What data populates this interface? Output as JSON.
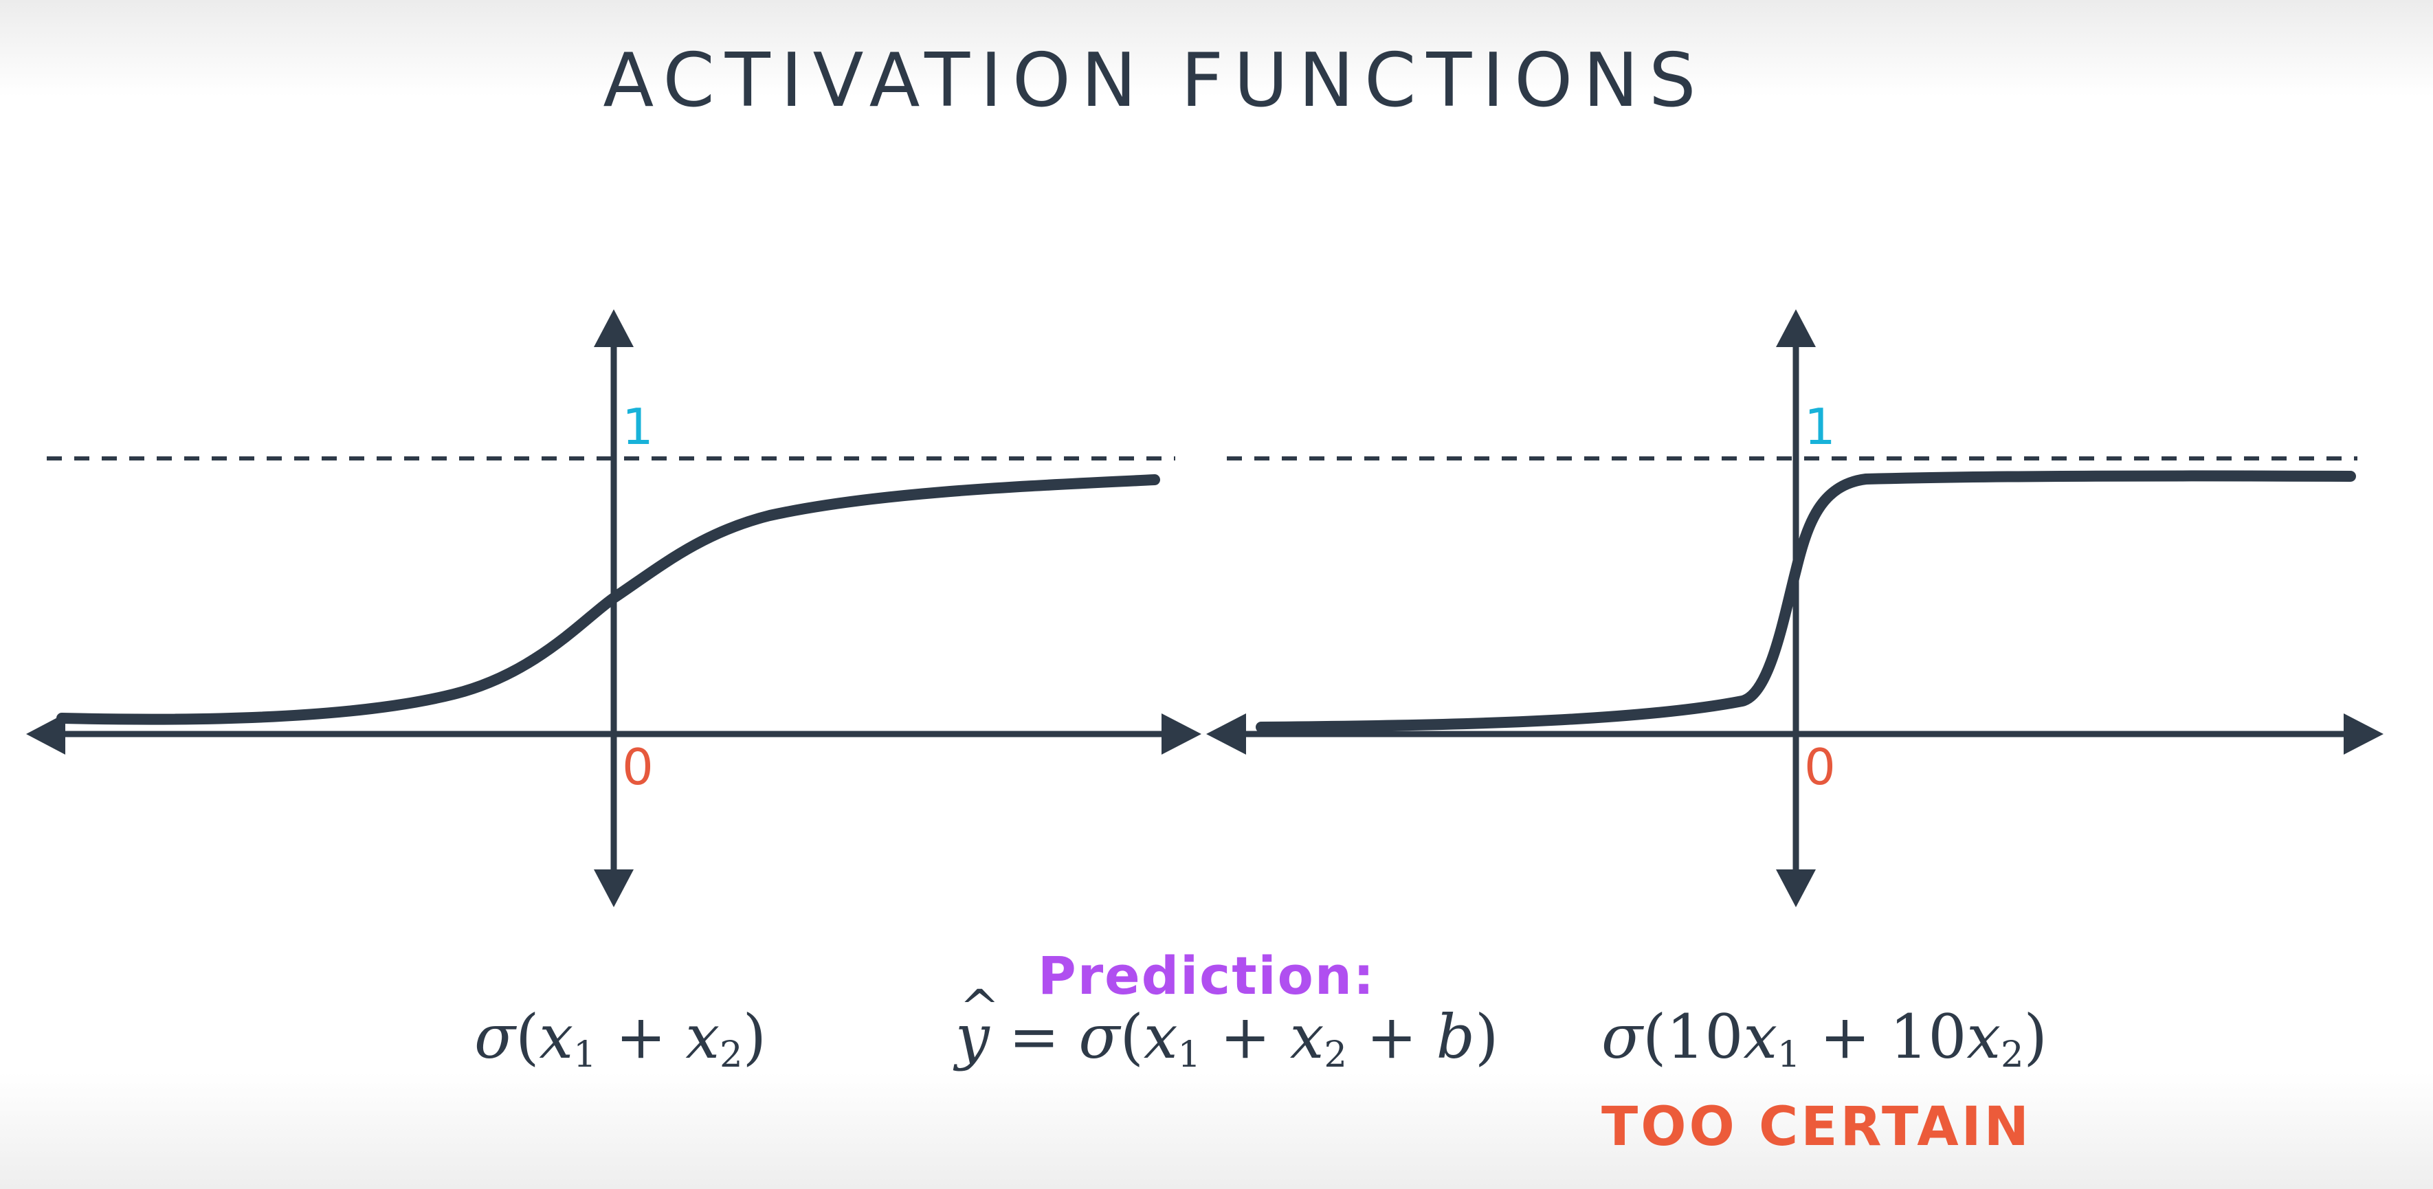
{
  "title": "ACTIVATION FUNCTIONS",
  "left_graph": {
    "top_label": "1",
    "origin_label": "0",
    "formula": {
      "fn": "σ",
      "open": "(",
      "v1": "x",
      "s1": "1",
      "plus": " + ",
      "v2": "x",
      "s2": "2",
      "close": ")"
    }
  },
  "right_graph": {
    "top_label": "1",
    "origin_label": "0",
    "formula": {
      "fn": "σ",
      "open": "(",
      "c1": "10",
      "v1": "x",
      "s1": "1",
      "plus": " + ",
      "c2": "10",
      "v2": "x",
      "s2": "2",
      "close": ")"
    },
    "verdict": "TOO CERTAIN"
  },
  "prediction": {
    "label": "Prediction:",
    "formula": {
      "lhs": "y",
      "hat": "^",
      "eq": " = ",
      "fn": "σ",
      "open": "(",
      "v1": "x",
      "s1": "1",
      "plus1": " + ",
      "v2": "x",
      "s2": "2",
      "plus2": " + ",
      "b": "b",
      "close": ")"
    }
  },
  "colors": {
    "ink": "#2e3a48",
    "one_label": "#18b2d9",
    "zero_label": "#e6593d",
    "prediction": "#b04ff0",
    "warning": "#ec5b3a"
  }
}
